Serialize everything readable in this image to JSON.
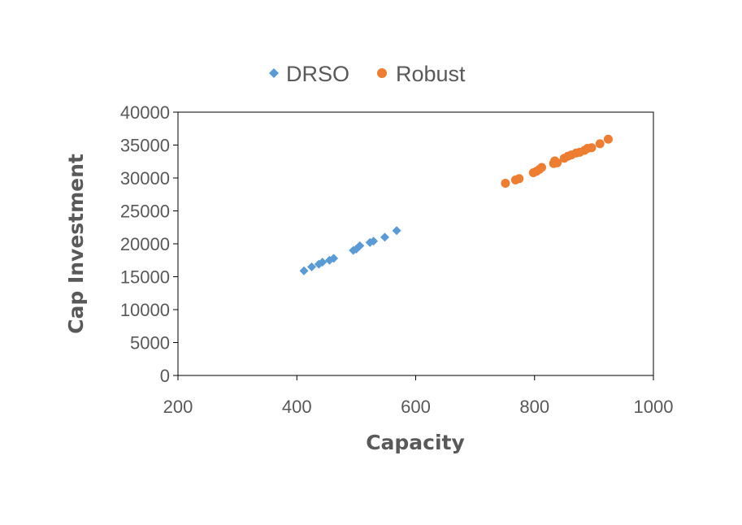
{
  "chart_data": {
    "type": "scatter",
    "title": "",
    "xlabel": "Capacity",
    "ylabel": "Cap Investment",
    "xlim": [
      200,
      1000
    ],
    "ylim": [
      0,
      40000
    ],
    "x_ticks": [
      200,
      400,
      600,
      800,
      1000
    ],
    "y_ticks": [
      0,
      5000,
      10000,
      15000,
      20000,
      25000,
      30000,
      35000,
      40000
    ],
    "grid": false,
    "legend_position": "top",
    "series": [
      {
        "name": "DRSO",
        "marker": "diamond",
        "color": "#5B9BD5",
        "points": [
          [
            412,
            15900
          ],
          [
            425,
            16500
          ],
          [
            437,
            16900
          ],
          [
            443,
            17200
          ],
          [
            455,
            17500
          ],
          [
            462,
            17800
          ],
          [
            495,
            19000
          ],
          [
            500,
            19200
          ],
          [
            506,
            19700
          ],
          [
            523,
            20200
          ],
          [
            529,
            20400
          ],
          [
            548,
            21000
          ],
          [
            568,
            22000
          ]
        ]
      },
      {
        "name": "Robust",
        "marker": "circle",
        "color": "#ED7D31",
        "points": [
          [
            751,
            29200
          ],
          [
            768,
            29700
          ],
          [
            774,
            29900
          ],
          [
            798,
            30800
          ],
          [
            803,
            31000
          ],
          [
            808,
            31300
          ],
          [
            812,
            31600
          ],
          [
            832,
            32200
          ],
          [
            834,
            32600
          ],
          [
            838,
            32300
          ],
          [
            850,
            33000
          ],
          [
            856,
            33300
          ],
          [
            862,
            33500
          ],
          [
            870,
            33800
          ],
          [
            876,
            33900
          ],
          [
            884,
            34200
          ],
          [
            889,
            34500
          ],
          [
            896,
            34600
          ],
          [
            910,
            35200
          ],
          [
            924,
            35900
          ]
        ]
      }
    ]
  }
}
